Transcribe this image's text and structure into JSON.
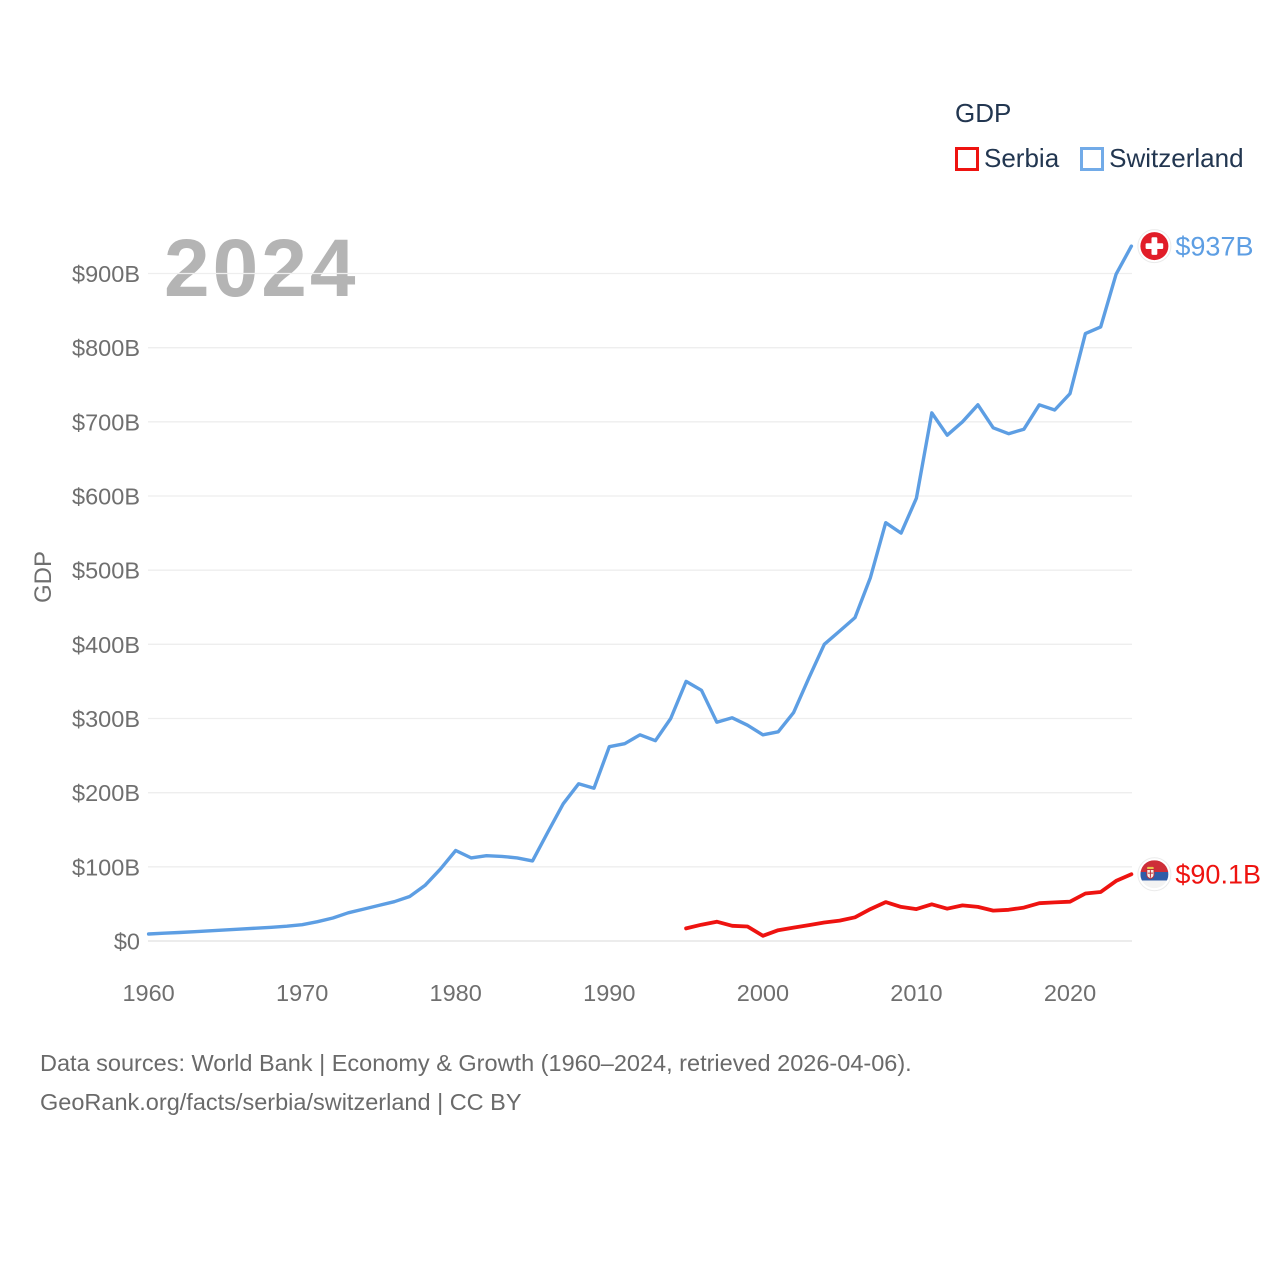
{
  "watermark": "2024",
  "legend": {
    "title": "GDP",
    "items": [
      {
        "label": "Serbia",
        "color": "#ee1310"
      },
      {
        "label": "Switzerland",
        "color": "#72abe8"
      }
    ]
  },
  "ylabel": "GDP",
  "end_labels": [
    {
      "series": "Switzerland",
      "value": "$937B",
      "flag": "switzerland-flag",
      "color": "#5d9ee3"
    },
    {
      "series": "Serbia",
      "value": "$90.1B",
      "flag": "serbia-flag",
      "color": "#ee1310"
    }
  ],
  "footer": {
    "line1": "Data sources: World Bank | Economy & Growth (1960–2024, retrieved 2026-04-06).",
    "line2": "GeoRank.org/facts/serbia/switzerland | CC BY"
  },
  "colors": {
    "serbia_line": "#ee1310",
    "switzerland_line": "#5d9ee3",
    "axis_text": "#6f6f6f",
    "gridline": "#eeeeee",
    "zero_line": "#e0e0e0",
    "watermark": "#b4b4b4",
    "legend_text": "#223650"
  },
  "chart_data": {
    "type": "line",
    "title": "GDP",
    "ylabel": "GDP",
    "ylim": [
      0,
      970
    ],
    "x_range": [
      1960,
      2024
    ],
    "grid": "horizontal",
    "legend_position": "top-right",
    "y_ticks": [
      {
        "value": 0,
        "label": "$0"
      },
      {
        "value": 100,
        "label": "$100B"
      },
      {
        "value": 200,
        "label": "$200B"
      },
      {
        "value": 300,
        "label": "$300B"
      },
      {
        "value": 400,
        "label": "$400B"
      },
      {
        "value": 500,
        "label": "$500B"
      },
      {
        "value": 600,
        "label": "$600B"
      },
      {
        "value": 700,
        "label": "$700B"
      },
      {
        "value": 800,
        "label": "$800B"
      },
      {
        "value": 900,
        "label": "$900B"
      }
    ],
    "x_ticks": [
      {
        "year": 1960,
        "label": "1960"
      },
      {
        "year": 1970,
        "label": "1970"
      },
      {
        "year": 1980,
        "label": "1980"
      },
      {
        "year": 1990,
        "label": "1990"
      },
      {
        "year": 2000,
        "label": "2000"
      },
      {
        "year": 2010,
        "label": "2010"
      },
      {
        "year": 2020,
        "label": "2020"
      }
    ],
    "series": [
      {
        "name": "Switzerland",
        "color": "#5d9ee3",
        "unit": "billion USD",
        "start_year": 1960,
        "values": [
          9.5,
          10.5,
          11.5,
          12.6,
          13.8,
          15,
          16,
          17.2,
          18.5,
          20,
          22,
          26,
          31,
          38,
          43,
          48,
          53,
          60,
          75,
          97,
          122,
          112,
          115,
          114,
          112,
          108,
          147,
          185,
          212,
          206,
          262,
          266,
          278,
          270,
          300,
          350,
          338,
          295,
          301,
          291,
          278,
          282,
          308,
          355,
          400,
          418,
          436,
          490,
          564,
          550,
          597,
          712,
          682,
          700,
          723,
          692,
          684,
          690,
          723,
          716,
          738,
          819,
          828,
          899,
          937
        ],
        "end_value_label": "$937B"
      },
      {
        "name": "Serbia",
        "color": "#ee1310",
        "unit": "billion USD",
        "start_year": 1995,
        "values": [
          17,
          22,
          26,
          20.5,
          19.5,
          7,
          14.5,
          18,
          21.5,
          25,
          27.5,
          32,
          43,
          52.5,
          46,
          43,
          49.5,
          43.5,
          48,
          46,
          41,
          42,
          45,
          51,
          52,
          53,
          64,
          66,
          81,
          90.1
        ],
        "end_value_label": "$90.1B"
      }
    ]
  }
}
